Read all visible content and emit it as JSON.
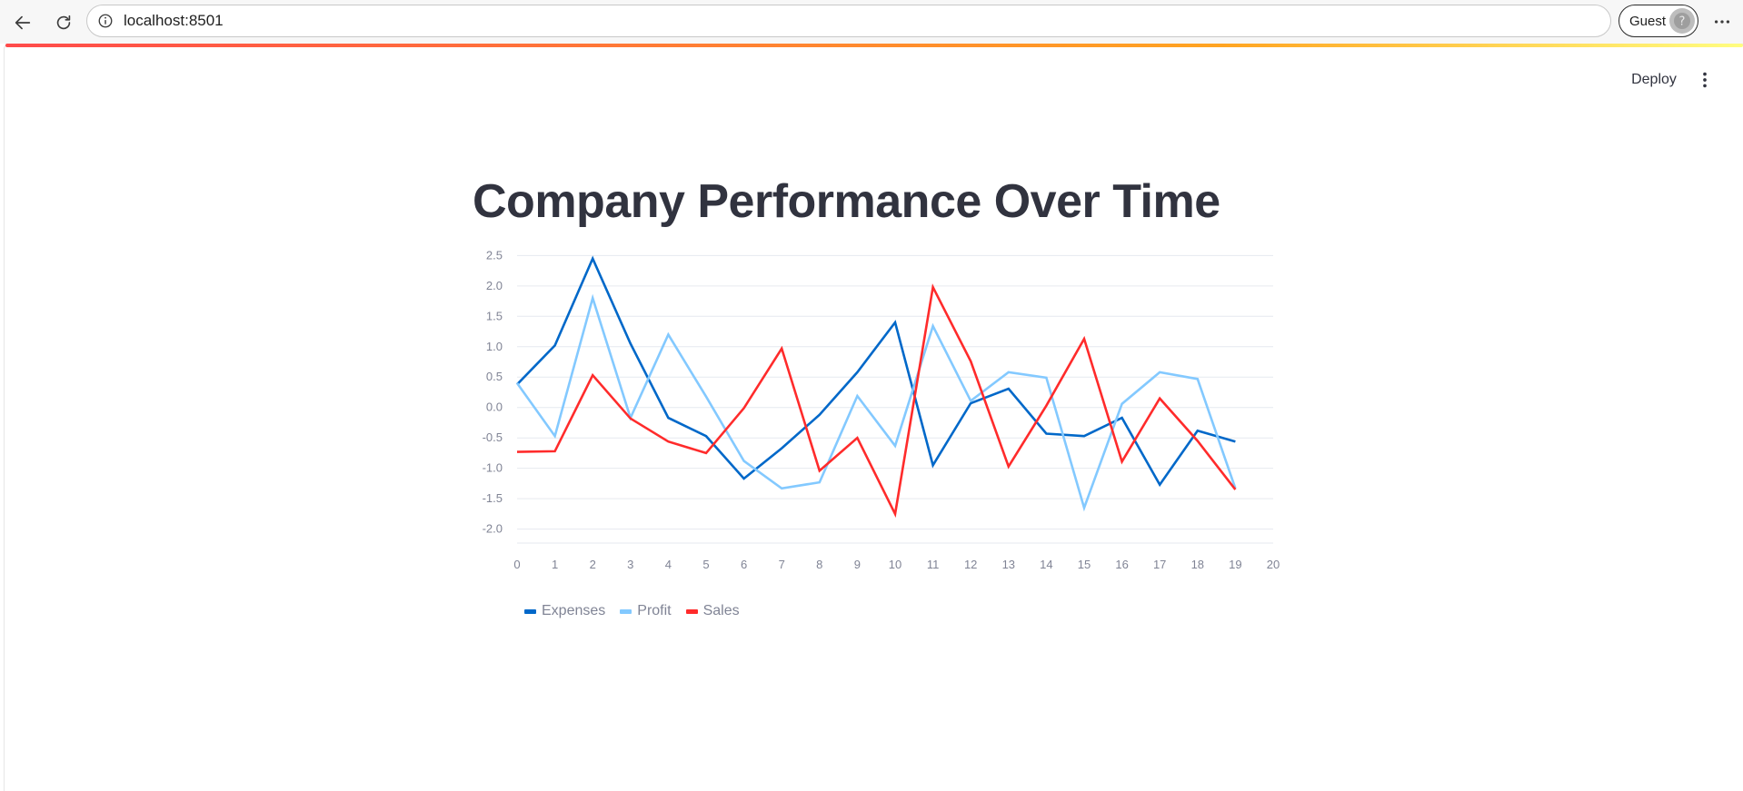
{
  "browser": {
    "url": "localhost:8501",
    "profile_label": "Guest"
  },
  "app": {
    "deploy_label": "Deploy",
    "title": "Company Performance Over Time",
    "decoration_colors": [
      "#ff4b4b",
      "#ffa421",
      "#fffd80"
    ]
  },
  "chart_data": {
    "type": "line",
    "title": "Company Performance Over Time",
    "xlabel": "",
    "ylabel": "",
    "x": [
      0,
      1,
      2,
      3,
      4,
      5,
      6,
      7,
      8,
      9,
      10,
      11,
      12,
      13,
      14,
      15,
      16,
      17,
      18,
      19
    ],
    "xlim": [
      0,
      20
    ],
    "x_ticks": [
      0,
      1,
      2,
      3,
      4,
      5,
      6,
      7,
      8,
      9,
      10,
      11,
      12,
      13,
      14,
      15,
      16,
      17,
      18,
      19,
      20
    ],
    "ylim": [
      -2.2,
      2.55
    ],
    "y_ticks": [
      "2.5",
      "2.0",
      "1.5",
      "1.0",
      "0.5",
      "0.0",
      "-0.5",
      "-1.0",
      "-1.5",
      "-2.0"
    ],
    "y_tick_values": [
      2.5,
      2.0,
      1.5,
      1.0,
      0.5,
      0.0,
      -0.5,
      -1.0,
      -1.5,
      -2.0
    ],
    "grid": true,
    "legend_position": "bottom-left",
    "series": [
      {
        "name": "Expenses",
        "color": "#0068c9",
        "values": [
          0.38,
          1.02,
          2.45,
          1.05,
          -0.17,
          -0.47,
          -1.17,
          -0.67,
          -0.12,
          0.58,
          1.4,
          -0.95,
          0.07,
          0.31,
          -0.43,
          -0.47,
          -0.17,
          -1.27,
          -0.38,
          -0.56
        ]
      },
      {
        "name": "Profit",
        "color": "#83c9ff",
        "values": [
          0.4,
          -0.47,
          1.8,
          -0.17,
          1.2,
          0.18,
          -0.88,
          -1.33,
          -1.23,
          0.19,
          -0.63,
          1.34,
          0.11,
          0.58,
          0.49,
          -1.65,
          0.06,
          0.58,
          0.47,
          -1.33
        ]
      },
      {
        "name": "Sales",
        "color": "#ff2b2b",
        "values": [
          -0.73,
          -0.72,
          0.53,
          -0.18,
          -0.56,
          -0.75,
          -0.01,
          0.97,
          -1.04,
          -0.5,
          -1.75,
          1.98,
          0.76,
          -0.97,
          0.03,
          1.13,
          -0.89,
          0.15,
          -0.55,
          -1.35
        ]
      }
    ]
  }
}
